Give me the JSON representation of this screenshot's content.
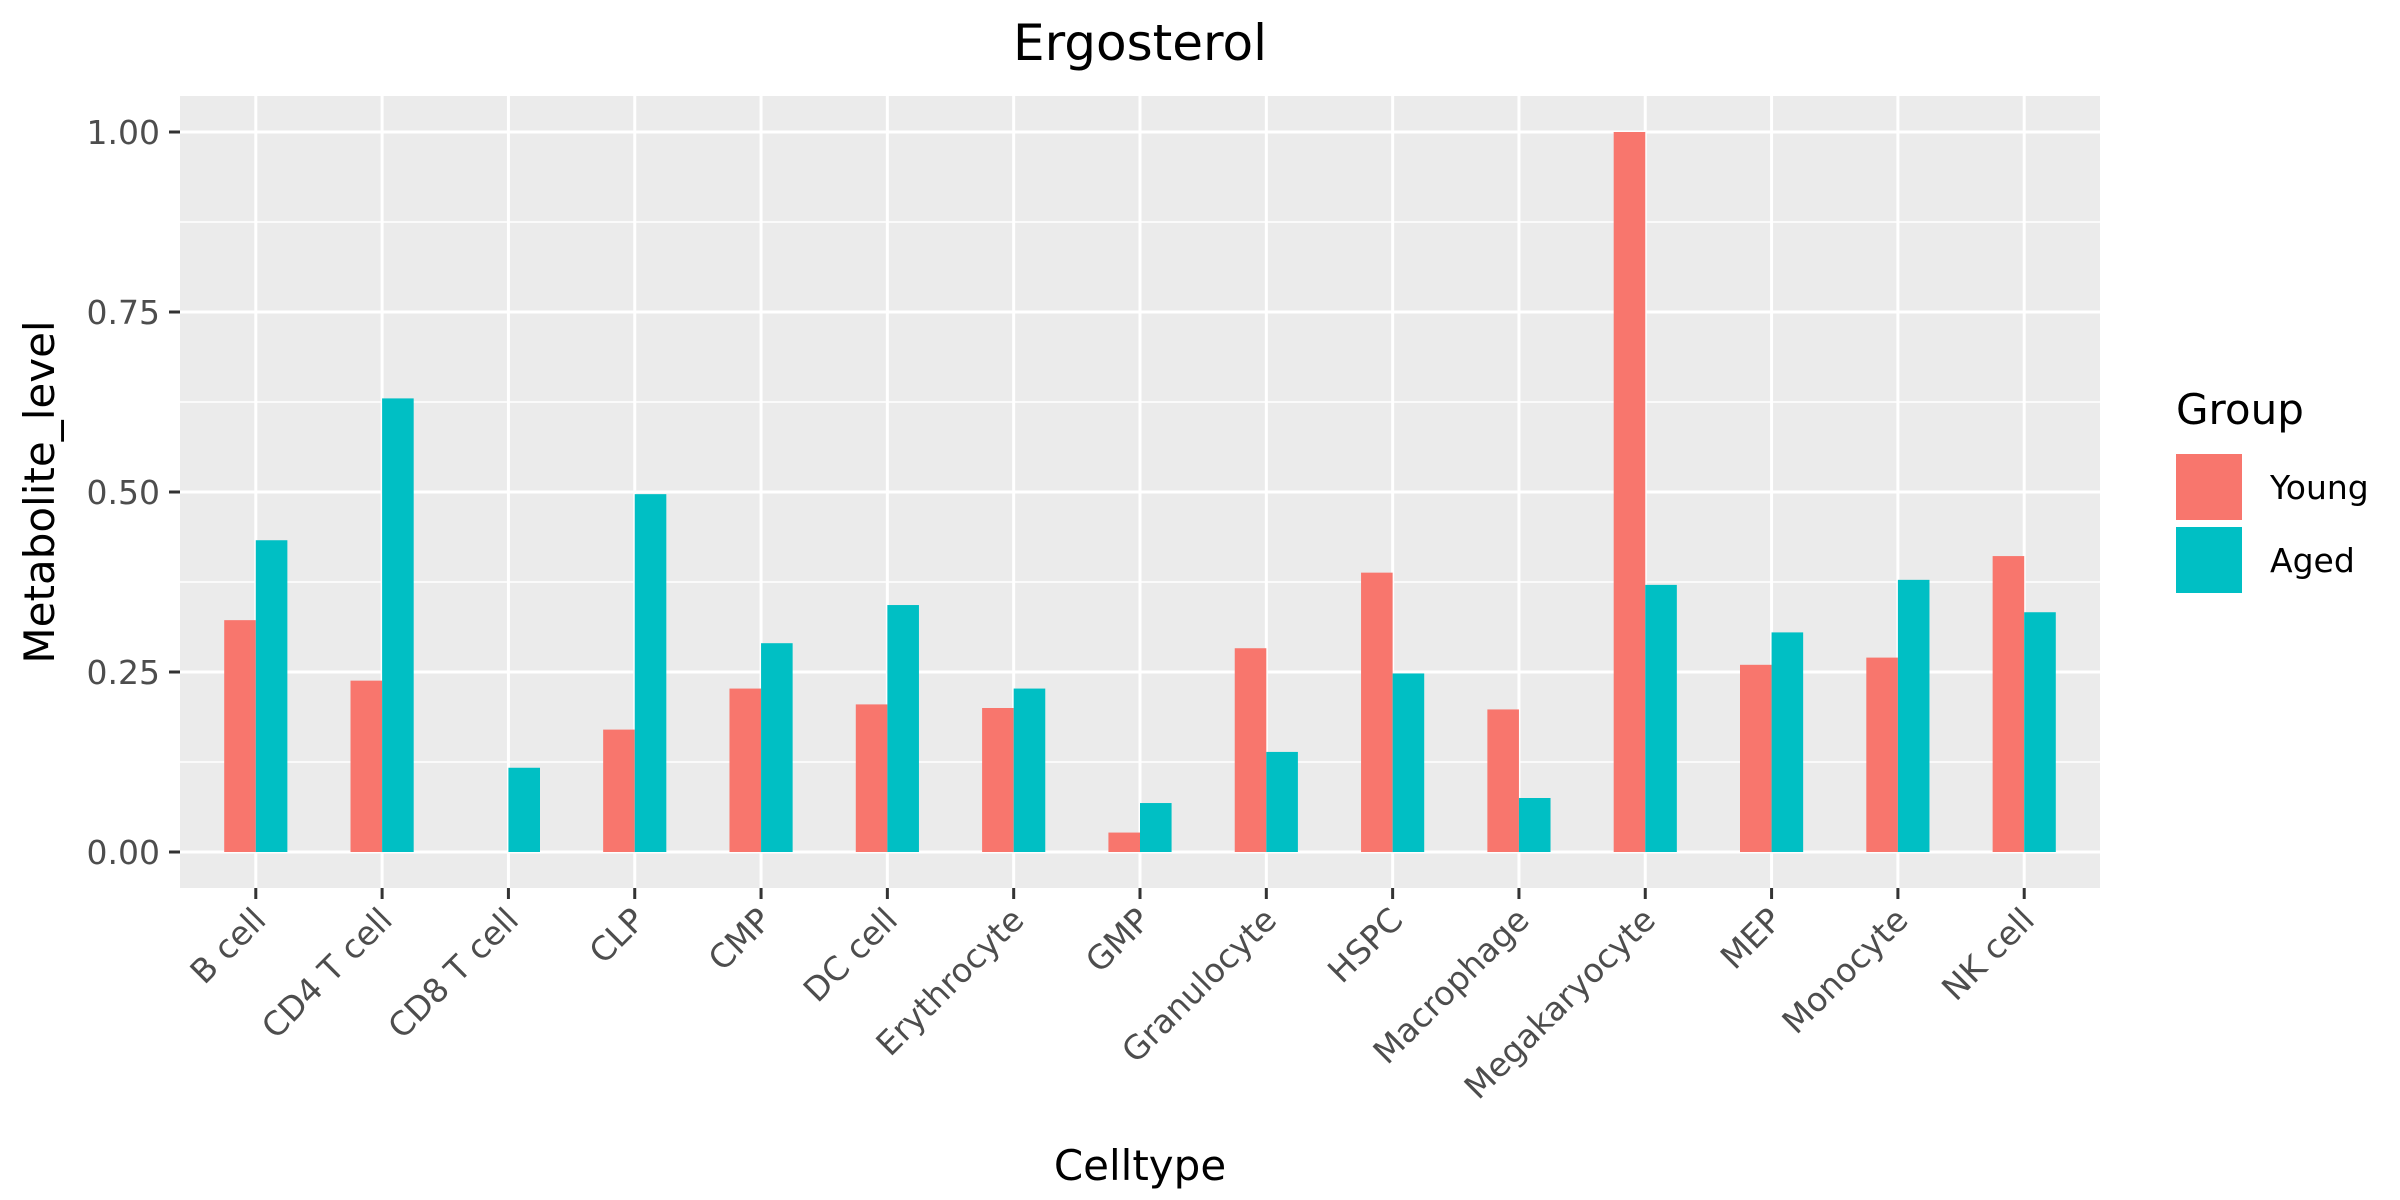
{
  "chart_data": {
    "type": "bar",
    "title": "Ergosterol",
    "xlabel": "Celltype",
    "ylabel": "Metabolite_level",
    "categories": [
      "B cell",
      "CD4 T cell",
      "CD8 T cell",
      "CLP",
      "CMP",
      "DC cell",
      "Erythrocyte",
      "GMP",
      "Granulocyte",
      "HSPC",
      "Macrophage",
      "Megakaryocyte",
      "MEP",
      "Monocyte",
      "NK cell"
    ],
    "series": [
      {
        "name": "Young",
        "color": "#F8766D",
        "values": [
          0.322,
          0.238,
          null,
          0.17,
          0.227,
          0.205,
          0.2,
          0.027,
          0.283,
          0.388,
          0.198,
          1.0,
          0.26,
          0.27,
          0.411
        ]
      },
      {
        "name": "Aged",
        "color": "#00BFC4",
        "values": [
          0.433,
          0.63,
          0.117,
          0.497,
          0.29,
          0.343,
          0.227,
          0.068,
          0.139,
          0.248,
          0.075,
          0.371,
          0.305,
          0.378,
          0.333
        ]
      }
    ],
    "ylim": [
      -0.05,
      1.05
    ],
    "yticks": [
      0.0,
      0.25,
      0.5,
      0.75,
      1.0
    ],
    "ytick_labels": [
      "0.00",
      "0.25",
      "0.50",
      "0.75",
      "1.00"
    ],
    "grid": true,
    "legend": {
      "title": "Group",
      "position": "right"
    },
    "panel_background": "#EBEBEB",
    "grid_color": "#FFFFFF"
  }
}
